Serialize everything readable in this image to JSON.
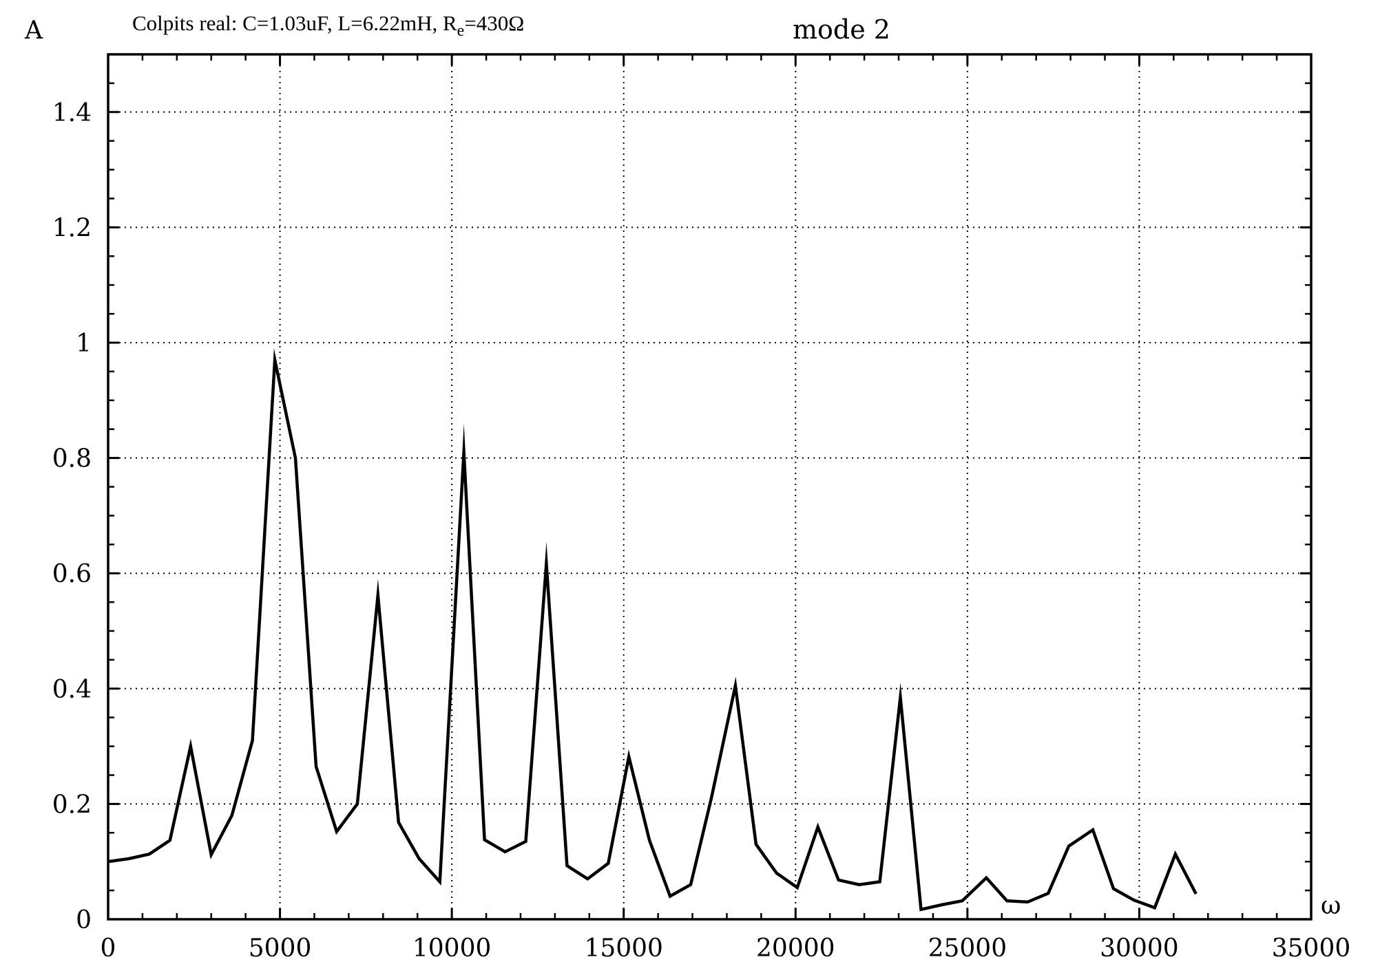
{
  "chart_data": {
    "type": "line",
    "title": "mode 2",
    "subtitle": {
      "prefix": "Colpits real: C=1.03uF, L=6.22mH, R",
      "sub": "e",
      "suffix": "=430Ω"
    },
    "xlabel": "ω",
    "ylabel": "A",
    "xlim": [
      0,
      35000
    ],
    "ylim": [
      0,
      1.5
    ],
    "x_ticks": [
      0,
      5000,
      10000,
      15000,
      20000,
      25000,
      30000,
      35000
    ],
    "x_tick_labels": [
      "0",
      "5000",
      "10000",
      "15000",
      "20000",
      "25000",
      "30000",
      "35000"
    ],
    "y_ticks": [
      0,
      0.2,
      0.4,
      0.6,
      0.8,
      1,
      1.2,
      1.4
    ],
    "y_tick_labels": [
      "0",
      "0.2",
      "0.4",
      "0.6",
      "0.8",
      "1",
      "1.2",
      "1.4"
    ],
    "grid": true,
    "series": [
      {
        "color": "#000000",
        "x": [
          0,
          600,
          1200,
          1800,
          2400,
          3000,
          3600,
          4200,
          4850,
          5450,
          6050,
          6650,
          7250,
          7850,
          8450,
          9050,
          9650,
          10350,
          10950,
          11550,
          12150,
          12750,
          13350,
          13950,
          14550,
          15150,
          15750,
          16350,
          16950,
          17550,
          18250,
          18850,
          19450,
          20050,
          20650,
          21250,
          21850,
          22450,
          23050,
          23650,
          24250,
          24850,
          25550,
          26150,
          26750,
          27350,
          27950,
          28650,
          29250,
          29850,
          30450,
          31050,
          31650
        ],
        "y": [
          0.1,
          0.105,
          0.113,
          0.137,
          0.3,
          0.112,
          0.18,
          0.31,
          0.97,
          0.8,
          0.265,
          0.152,
          0.2,
          0.562,
          0.168,
          0.105,
          0.065,
          0.81,
          0.138,
          0.117,
          0.135,
          0.617,
          0.093,
          0.07,
          0.097,
          0.282,
          0.137,
          0.04,
          0.06,
          0.21,
          0.405,
          0.13,
          0.08,
          0.055,
          0.16,
          0.068,
          0.06,
          0.065,
          0.385,
          0.017,
          0.025,
          0.032,
          0.072,
          0.032,
          0.03,
          0.045,
          0.127,
          0.155,
          0.053,
          0.033,
          0.02,
          0.113,
          0.044
        ]
      }
    ]
  }
}
